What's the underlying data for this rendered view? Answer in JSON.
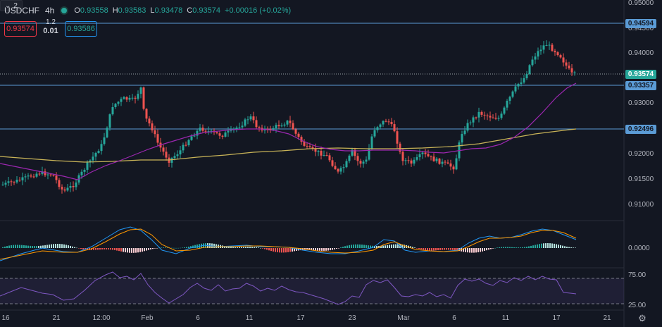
{
  "symbol": "USDCHF",
  "timeframe": "4h",
  "ohlc": {
    "o_label": "O",
    "o": "0.93558",
    "h_label": "H",
    "h": "0.93583",
    "l_label": "L",
    "l": "0.93478",
    "c_label": "C",
    "c": "0.93574",
    "change": "+0.00016 (+0.02%)"
  },
  "trade": {
    "sell": "0.93574",
    "spread_top": "1.2",
    "spread_bottom": "0.01",
    "buy": "0.93586",
    "indicators_collapsed": "2"
  },
  "price_axis": [
    "0.95000",
    "0.94500",
    "0.94000",
    "0.93500",
    "0.93000",
    "0.92500",
    "0.92000",
    "0.91500",
    "0.91000"
  ],
  "price_tags": {
    "line1": "0.94594",
    "current": "0.93574",
    "line2": "0.93357",
    "line3": "0.92496"
  },
  "macd_axis": "0.0000",
  "rsi_axis": [
    "75.00",
    "25.00"
  ],
  "time_axis": [
    "16",
    "21",
    "12:00",
    "Feb",
    "6",
    "11",
    "17",
    "23",
    "Mar",
    "6",
    "11",
    "17",
    "21"
  ],
  "colors": {
    "up": "#26a69a",
    "down": "#ef5350",
    "ma_fast": "#9c27b0",
    "ma_slow": "#c9b458",
    "hline": "#5b9bd5",
    "rsi": "#7e57c2"
  },
  "icons": [
    "gear-icon",
    "chevron-down-icon"
  ]
}
